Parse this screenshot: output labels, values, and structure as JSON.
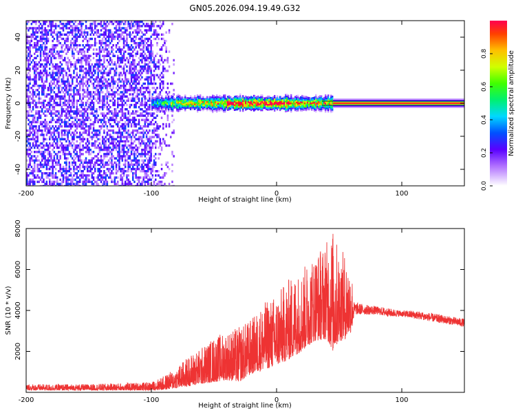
{
  "title": "GN05.2026.094.19.49.G32",
  "colors": {
    "snr_line": "#ee3333",
    "frame": "#000000"
  },
  "chart_data": [
    {
      "type": "heatmap",
      "title": "GN05.2026.094.19.49.G32",
      "xlabel": "Height of straight line (km)",
      "ylabel": "Frequency (Hz)",
      "xlim": [
        -200,
        150
      ],
      "ylim": [
        -50,
        50
      ],
      "xticks": [
        -200,
        -100,
        0,
        100
      ],
      "yticks": [
        -40,
        -20,
        0,
        20,
        40
      ],
      "colorbar": {
        "label": "Normalized spectral amplitude",
        "range": [
          0,
          1
        ],
        "ticks": [
          0.0,
          0.2,
          0.4,
          0.6,
          0.8
        ],
        "tick_labels": [
          "0.0",
          "0.2",
          "0.4",
          "0.6",
          "0.8"
        ]
      },
      "description_bands": [
        {
          "x_range": [
            -200,
            -85
          ],
          "pattern": "scattered low-amplitude noise across all frequencies",
          "amplitude": 0.15
        },
        {
          "x_range": [
            -100,
            45
          ],
          "pattern": "broadened line near 0 Hz (about ±6 Hz)",
          "peak_amplitude": 1.0
        },
        {
          "x_range": [
            45,
            150
          ],
          "pattern": "narrow line at 0 Hz",
          "peak_amplitude": 1.0
        }
      ]
    },
    {
      "type": "line",
      "xlabel": "Height of straight line (km)",
      "ylabel": "SNR (10 * v/v)",
      "xlim": [
        -200,
        150
      ],
      "ylim": [
        0,
        8000
      ],
      "xticks": [
        -200,
        -100,
        0,
        100
      ],
      "yticks": [
        2000,
        4000,
        6000,
        8000
      ],
      "series": [
        {
          "name": "SNR",
          "envelope_x": [
            -200,
            -150,
            -100,
            -90,
            -80,
            -70,
            -60,
            -50,
            -40,
            -30,
            -20,
            -10,
            0,
            10,
            20,
            30,
            40,
            45,
            50,
            55,
            60,
            62,
            70,
            80,
            90,
            100,
            110,
            120,
            130,
            140,
            150
          ],
          "envelope_min": [
            100,
            100,
            100,
            120,
            200,
            300,
            400,
            500,
            600,
            500,
            900,
            1100,
            1300,
            1600,
            2000,
            2500,
            2600,
            2000,
            2500,
            2600,
            3000,
            3800,
            3800,
            3800,
            3700,
            3700,
            3600,
            3500,
            3400,
            3300,
            3200
          ],
          "envelope_max": [
            400,
            400,
            500,
            800,
            1200,
            1800,
            2200,
            2700,
            3000,
            3200,
            3600,
            4400,
            4800,
            5600,
            6000,
            6800,
            7400,
            8000,
            7000,
            6800,
            6000,
            4400,
            4300,
            4200,
            4100,
            4000,
            4000,
            3900,
            3800,
            3700,
            3600
          ]
        }
      ]
    }
  ]
}
